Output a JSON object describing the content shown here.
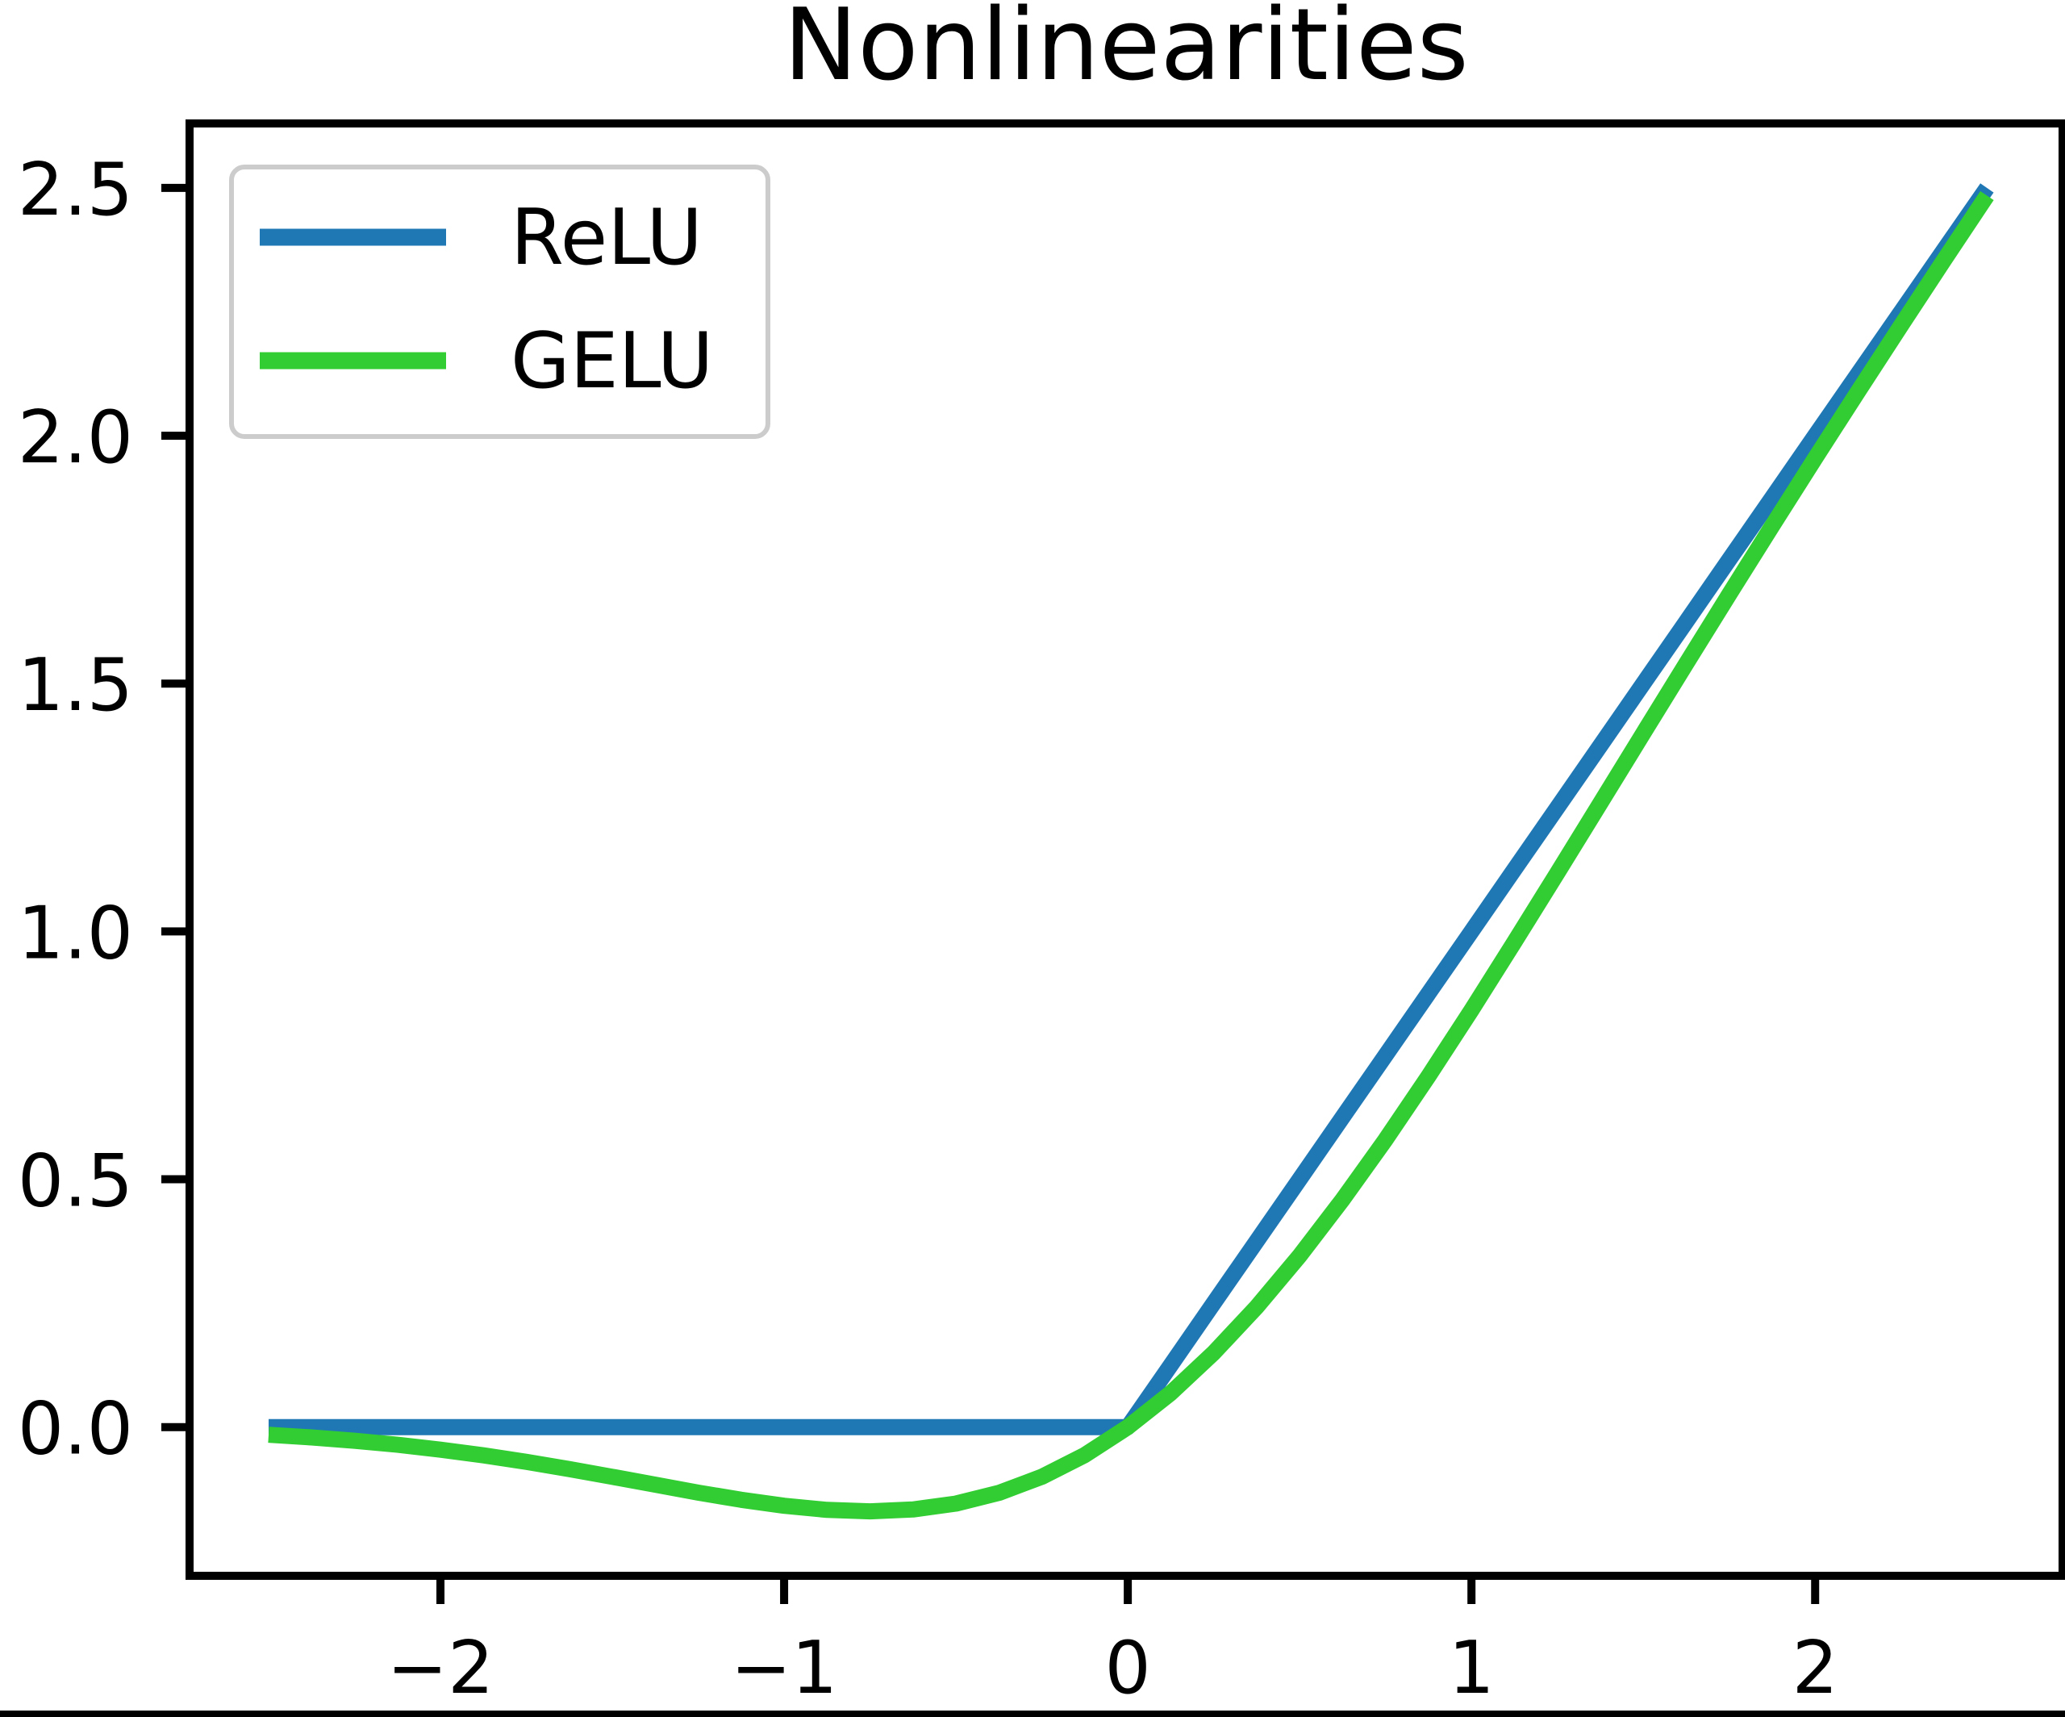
{
  "figure": {
    "background_color": "#ffffff",
    "text_color": "#000000",
    "axis_color": "#000000",
    "legend_border_color": "#cccccc",
    "legend_background_color": "#ffffff"
  },
  "chart_data": {
    "type": "line",
    "title": "Nonlinearities",
    "xlabel": "",
    "ylabel": "",
    "grid": false,
    "legend_position": "upper left",
    "legend_entries": [
      "ReLU",
      "GELU"
    ],
    "xlim": [
      -2.73,
      2.72
    ],
    "ylim": [
      -0.3,
      2.63
    ],
    "xticks": [
      -2,
      -1,
      0,
      1,
      2
    ],
    "xtick_labels": [
      "−2",
      "−1",
      "0",
      "1",
      "2"
    ],
    "yticks": [
      0.0,
      0.5,
      1.0,
      1.5,
      2.0,
      2.5
    ],
    "ytick_labels": [
      "0.0",
      "0.5",
      "1.0",
      "1.5",
      "2.0",
      "2.5"
    ],
    "x": [
      -2.5,
      -2.375,
      -2.25,
      -2.125,
      -2.0,
      -1.875,
      -1.75,
      -1.625,
      -1.5,
      -1.375,
      -1.25,
      -1.125,
      -1.0,
      -0.875,
      -0.75,
      -0.625,
      -0.5,
      -0.375,
      -0.25,
      -0.125,
      0,
      0.125,
      0.25,
      0.375,
      0.5,
      0.625,
      0.75,
      0.875,
      1.0,
      1.125,
      1.25,
      1.375,
      1.5,
      1.625,
      1.75,
      1.875,
      2.0,
      2.125,
      2.25,
      2.375,
      2.5
    ],
    "series": [
      {
        "name": "ReLU",
        "color": "#1f77b4",
        "values": [
          0,
          0,
          0,
          0,
          0,
          0,
          0,
          0,
          0,
          0,
          0,
          0,
          0,
          0,
          0,
          0,
          0,
          0,
          0,
          0,
          0,
          0.125,
          0.25,
          0.375,
          0.5,
          0.625,
          0.75,
          0.875,
          1.0,
          1.125,
          1.25,
          1.375,
          1.5,
          1.625,
          1.75,
          1.875,
          2.0,
          2.125,
          2.25,
          2.375,
          2.5
        ]
      },
      {
        "name": "GELU",
        "color": "#32cd32",
        "values": [
          -0.0155,
          -0.0208,
          -0.0275,
          -0.0357,
          -0.0455,
          -0.057,
          -0.0701,
          -0.0846,
          -0.1002,
          -0.1163,
          -0.1321,
          -0.1466,
          -0.1587,
          -0.167,
          -0.17,
          -0.1662,
          -0.1543,
          -0.1327,
          -0.1003,
          -0.0563,
          0,
          0.0687,
          0.1497,
          0.2423,
          0.3457,
          0.4588,
          0.58,
          0.708,
          0.8413,
          0.9784,
          1.1179,
          1.2587,
          1.3998,
          1.5404,
          1.6799,
          1.818,
          1.9545,
          2.0893,
          2.2225,
          2.3542,
          2.4845
        ]
      }
    ]
  }
}
